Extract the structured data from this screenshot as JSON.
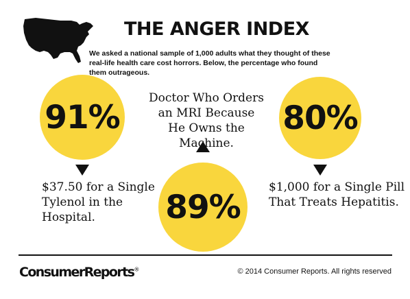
{
  "header": {
    "title": "THE ANGER INDEX",
    "subtitle": "We asked a national sample of 1,000 adults what they thought of these real-life health care cost horrors. Below, the percentage who found them outrageous.",
    "map_icon": "us-map-icon"
  },
  "colors": {
    "circle": "#f9d63d",
    "text": "#111111",
    "background": "#ffffff"
  },
  "chart_data": {
    "type": "bubble",
    "title": "THE ANGER INDEX",
    "categories": [
      "$37.50 for a Single Tylenol in the Hospital.",
      "Doctor Who Orders an MRI Because He Owns the Machine.",
      "$1,000 for a Single Pill That Treats Hepatitis."
    ],
    "values": [
      91,
      89,
      80
    ],
    "value_labels": [
      "91%",
      "89%",
      "80%"
    ],
    "unit": "%"
  },
  "items": [
    {
      "pct": "91%",
      "text": "$37.50 for a Single Tylenol in the Hospital.",
      "arrow": "down"
    },
    {
      "pct": "89%",
      "text": "Doctor Who Orders an MRI Because He Owns the Machine.",
      "arrow": "up"
    },
    {
      "pct": "80%",
      "text": "$1,000 for a Single Pill That Treats Hepatitis.",
      "arrow": "down"
    }
  ],
  "footer": {
    "logo_text": "ConsumerReports",
    "logo_mark": "®",
    "copyright": "© 2014 Consumer Reports. All rights reserved"
  }
}
